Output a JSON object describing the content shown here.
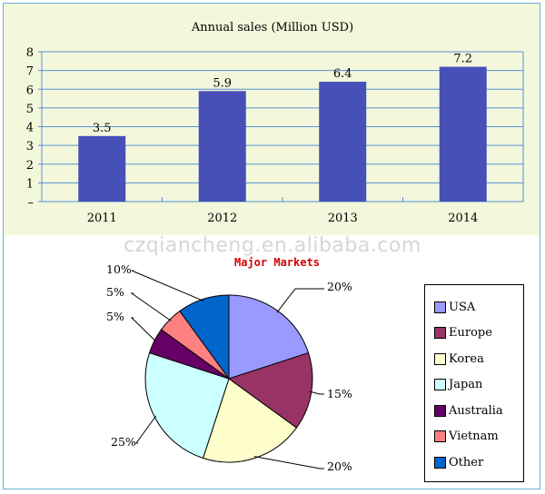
{
  "watermark": "czqiancheng.en.alibaba.com",
  "chart_data": [
    {
      "type": "bar",
      "title": "Annual sales (Million USD)",
      "categories": [
        "2011",
        "2012",
        "2013",
        "2014"
      ],
      "values": [
        3.5,
        5.9,
        6.4,
        7.2
      ],
      "data_labels": [
        "3.5",
        "5.9",
        "6.4",
        "7.2"
      ],
      "ylim": [
        0,
        8
      ],
      "yticks": [
        "0",
        "1",
        "2",
        "3",
        "4",
        "5",
        "6",
        "7",
        "8"
      ],
      "grid": true,
      "color": "#4650b6",
      "background": "#f3f8dc"
    },
    {
      "type": "pie",
      "title": "Major Markets",
      "legend_position": "right",
      "slices": [
        {
          "label": "USA",
          "value": 20,
          "display": "20%",
          "color": "#9999ff"
        },
        {
          "label": "Europe",
          "value": 15,
          "display": "15%",
          "color": "#993366"
        },
        {
          "label": "Korea",
          "value": 20,
          "display": "20%",
          "color": "#ffffcc"
        },
        {
          "label": "Japan",
          "value": 25,
          "display": "25%",
          "color": "#ccffff"
        },
        {
          "label": "Australia",
          "value": 5,
          "display": "5%",
          "color": "#660066"
        },
        {
          "label": "Vietnam",
          "value": 5,
          "display": "5%",
          "color": "#ff8080"
        },
        {
          "label": "Other",
          "value": 10,
          "display": "10%",
          "color": "#0066cc"
        }
      ]
    }
  ]
}
